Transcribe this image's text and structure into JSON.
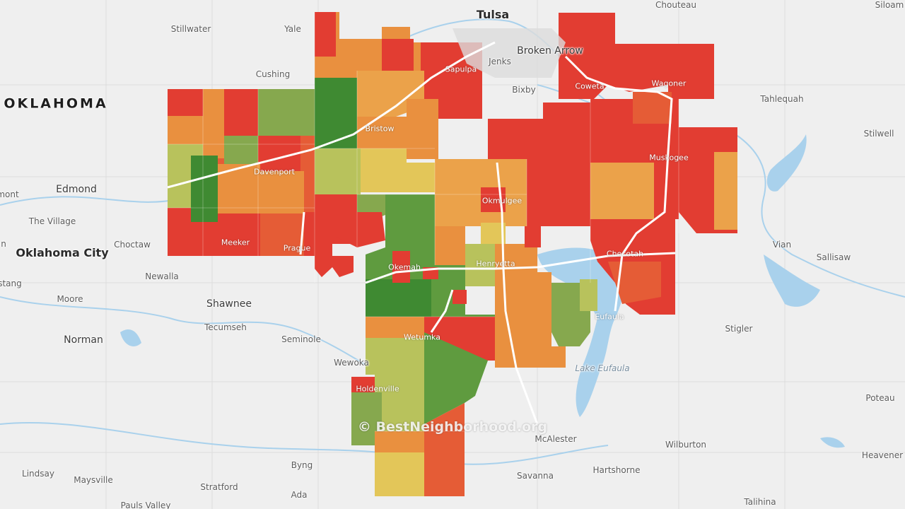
{
  "colors": {
    "background": "#efefef",
    "water": "#a9d1ec",
    "red": "#e23d32",
    "red_orange": "#e55c36",
    "orange": "#e9903f",
    "orange_light": "#eba24a",
    "yellow": "#e3c659",
    "yellow_green": "#b8c25c",
    "green_light": "#86a84e",
    "green": "#5f9b3f",
    "green_dark": "#3f8a32"
  },
  "state_label": "OKLAHOMA",
  "watermark": "© BestNeighborhood.org",
  "cities_outside": {
    "tulsa": "Tulsa",
    "chouteau": "Chouteau",
    "siloam": "Siloam",
    "stillwater": "Stillwater",
    "yale": "Yale",
    "cushing": "Cushing",
    "jenks": "Jenks",
    "bixby": "Bixby",
    "tahlequah": "Tahlequah",
    "stilwell": "Stilwell",
    "edmond": "Edmond",
    "the_village": "The Village",
    "oklahoma_city": "Oklahoma City",
    "choctaw": "Choctaw",
    "newalla": "Newalla",
    "moore": "Moore",
    "norman": "Norman",
    "shawnee": "Shawnee",
    "tecumseh": "Tecumseh",
    "seminole": "Seminole",
    "wewoka": "Wewoka",
    "vian": "Vian",
    "sallisaw": "Sallisaw",
    "stigler": "Stigler",
    "poteau": "Poteau",
    "heavener": "Heavener",
    "wilburton": "Wilburton",
    "mcalester": "McAlester",
    "hartshorne": "Hartshorne",
    "savanna": "Savanna",
    "byng": "Byng",
    "ada": "Ada",
    "stratford": "Stratford",
    "lindsay": "Lindsay",
    "maysville": "Maysville",
    "pauls_valley": "Pauls Valley",
    "talihina": "Talihina",
    "edge_west_1": "mont",
    "edge_west_2": "stang",
    "edge_west_3": "n"
  },
  "cities_inside": {
    "broken_arrow": "Broken Arrow",
    "sapulpa": "Sapulpa",
    "coweta": "Coweta",
    "wagoner": "Wagoner",
    "bristow": "Bristow",
    "davenport": "Davenport",
    "muskogee": "Muskogee",
    "okmulgee": "Okmulgee",
    "meeker": "Meeker",
    "prague": "Prague",
    "okemah": "Okemah",
    "henryetta": "Henryetta",
    "checotah": "Checotah",
    "eufaula": "Eufaula",
    "wetumka": "Wetumka",
    "holdenville": "Holdenville"
  },
  "lake_label": "Lake Eufaula"
}
